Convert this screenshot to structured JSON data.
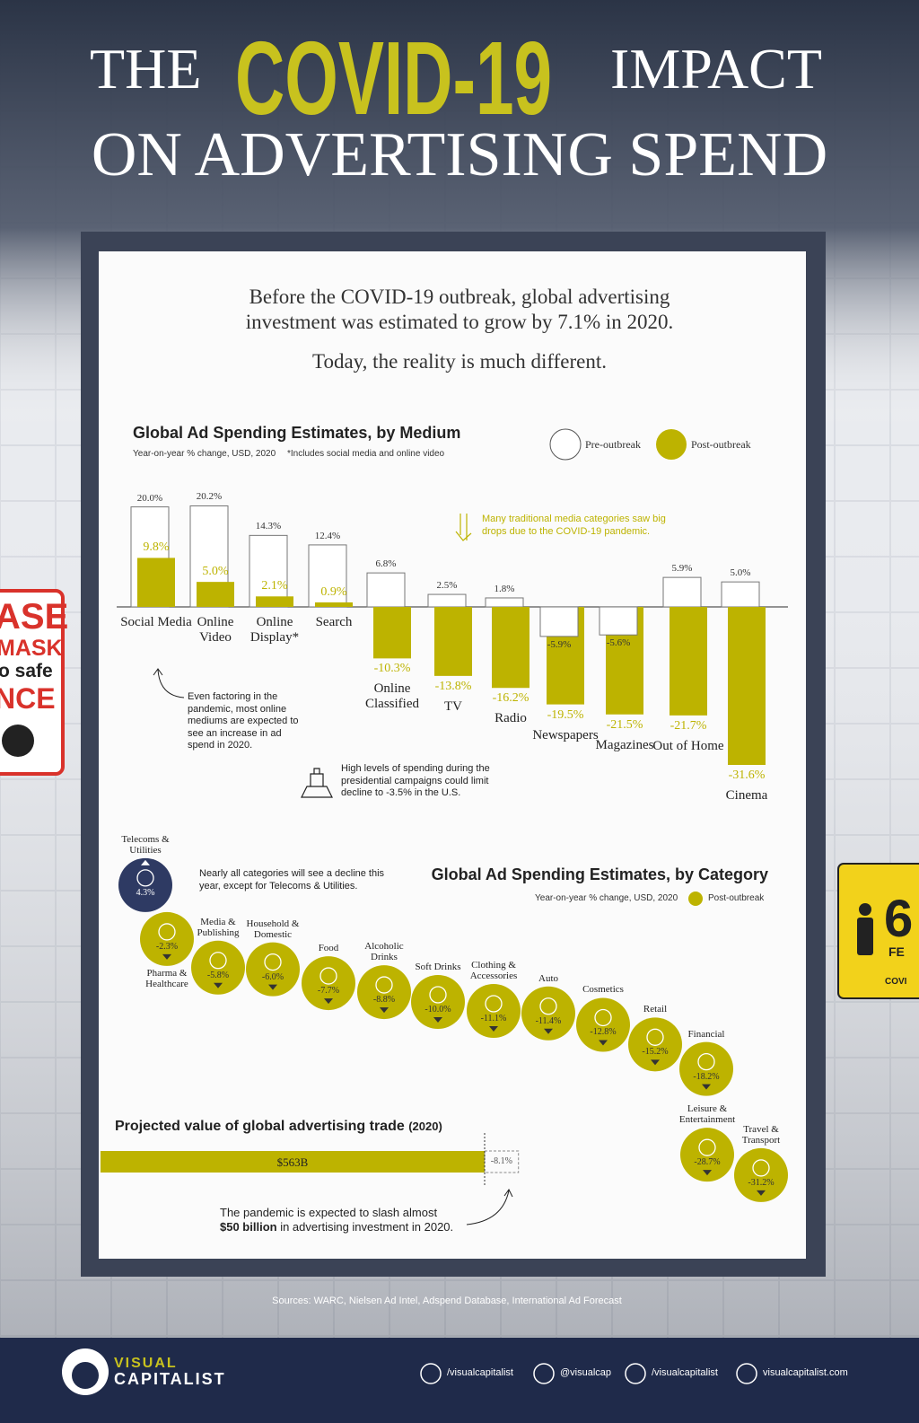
{
  "header": {
    "title_the": "THE",
    "title_covid": "COVID-19",
    "title_impact": "IMPACT",
    "title_line2": "ON ADVERTISING SPEND"
  },
  "intro": {
    "lines": [
      "Before the COVID-19 outbreak, global advertising",
      "investment was estimated to grow by 7.1% in 2020."
    ],
    "subline": "Today, the reality is much different."
  },
  "chart_data": [
    {
      "type": "bar",
      "title": "Global Ad Spending Estimates, by Medium",
      "subtitle": "Year-on-year % change, USD, 2020",
      "note": "*Includes social media and online video",
      "categories": [
        "Social Media",
        "Online Video",
        "Online Display*",
        "Search",
        "Online Classified",
        "TV",
        "Radio",
        "Newspapers",
        "Magazines",
        "Out of Home",
        "Cinema"
      ],
      "series": [
        {
          "name": "Pre-outbreak",
          "color": "#ffffff",
          "values": [
            20.0,
            20.2,
            14.3,
            12.4,
            6.8,
            2.5,
            1.8,
            -5.9,
            -5.6,
            5.9,
            5.0
          ],
          "value_labels": [
            "20.0%",
            "20.2%",
            "14.3%",
            "12.4%",
            "6.8%",
            "2.5%",
            "1.8%",
            "-5.9%",
            "-5.6%",
            "5.9%",
            "5.0%"
          ]
        },
        {
          "name": "Post-outbreak",
          "color": "#bdb300",
          "values": [
            9.8,
            5.0,
            2.1,
            0.9,
            -10.3,
            -13.8,
            -16.2,
            -19.5,
            -21.5,
            -21.7,
            -31.6
          ],
          "value_labels": [
            "9.8%",
            "5.0%",
            "2.1%",
            "0.9%",
            "-10.3%",
            "-13.8%",
            "-16.2%",
            "-19.5%",
            "-21.5%",
            "-21.7%",
            "-31.6%"
          ]
        }
      ],
      "annotations": [
        "Even factoring in the pandemic, most online mediums are expected to see an increase in ad spend in 2020.",
        "Many traditional media categories saw big drops due to the COVID-19 pandemic.",
        "High levels of spending during the presidential campaigns could limit decline to -3.5% in the U.S."
      ]
    },
    {
      "type": "bubble",
      "title": "Global Ad Spending Estimates, by Category",
      "subtitle": "Year-on-year % change, USD, 2020",
      "categories": [
        "Telecoms & Utilities",
        "Pharma & Healthcare",
        "Media & Publishing",
        "Household & Domestic",
        "Food",
        "Alcoholic Drinks",
        "Soft Drinks",
        "Clothing & Accessories",
        "Auto",
        "Cosmetics",
        "Retail",
        "Financial",
        "Leisure & Entertainment",
        "Travel & Transport"
      ],
      "series": [
        {
          "name": "Post-outbreak",
          "color": "#bdb300",
          "values": [
            4.3,
            -2.3,
            -5.8,
            -6.0,
            -7.7,
            -8.8,
            -10.0,
            -11.1,
            -11.4,
            -12.8,
            -15.2,
            -18.2,
            -28.7,
            -31.2
          ],
          "value_labels": [
            "4.3%",
            "-2.3%",
            "-5.8%",
            "-6.0%",
            "-7.7%",
            "-8.8%",
            "-10.0%",
            "-11.1%",
            "-11.4%",
            "-12.8%",
            "-15.2%",
            "-18.2%",
            "-28.7%",
            "-31.2%"
          ],
          "point_colors": [
            "#2e3a63",
            "#bdb300",
            "#bdb300",
            "#bdb300",
            "#bdb300",
            "#bdb300",
            "#bdb300",
            "#bdb300",
            "#bdb300",
            "#bdb300",
            "#bdb300",
            "#bdb300",
            "#bdb300",
            "#bdb300"
          ]
        }
      ],
      "annotation": "Nearly all categories will see a decline this year, except for Telecoms & Utilities."
    },
    {
      "type": "hbar",
      "title": "Projected value of global advertising trade",
      "title_note": "(2020)",
      "color": "#bdb300",
      "values": [
        563
      ],
      "value_labels": [
        "$563B"
      ],
      "change": [
        -8.1
      ],
      "change_labels": [
        "-8.1%"
      ],
      "annotation": [
        "The pandemic is expected to slash almost",
        "$50 billion",
        "in advertising investment in 2020."
      ]
    }
  ],
  "sources": "Sources: WARC, Nielsen Ad Intel, Adspend Database, International Ad Forecast",
  "signs": {
    "left": [
      "ASE",
      "MASK",
      "o safe",
      "NCE"
    ],
    "right": [
      "6",
      "FE",
      "COVI"
    ]
  },
  "footer": {
    "logo_top": "VISUAL",
    "logo_bottom": "CAPITALIST",
    "links": [
      "/visualcapitalist",
      "@visualcap",
      "/visualcapitalist",
      "visualcapitalist.com"
    ]
  }
}
